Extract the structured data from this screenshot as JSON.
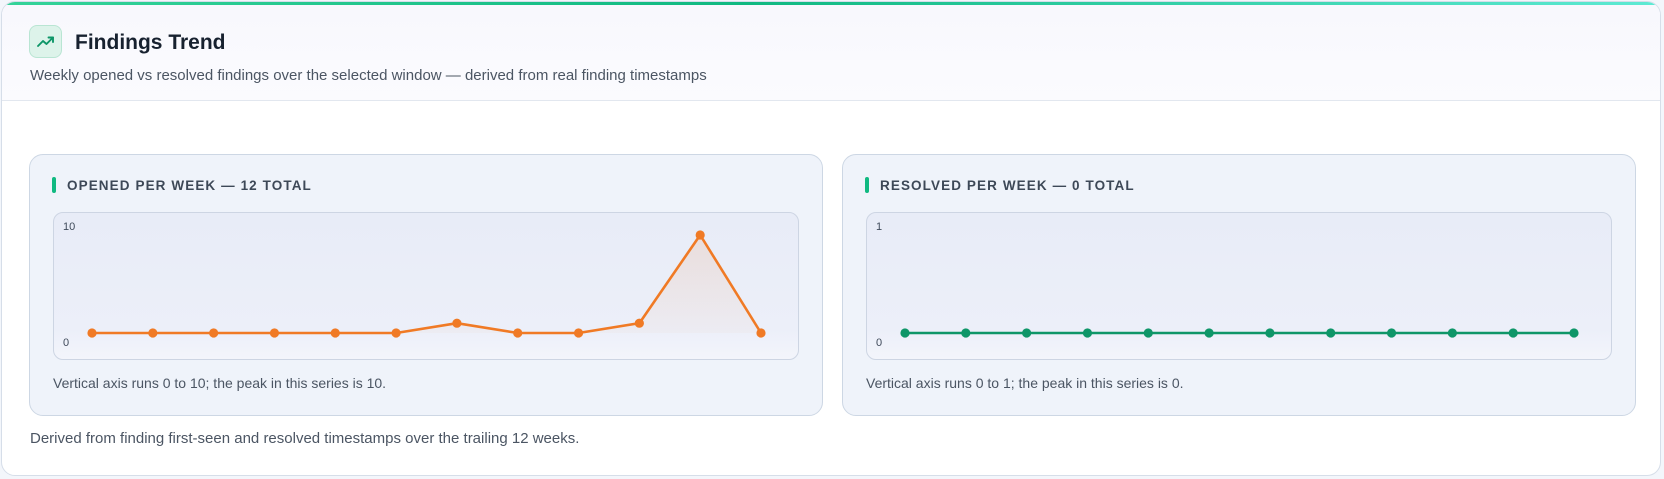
{
  "header": {
    "title": "Findings Trend",
    "subtitle": "Weekly opened vs resolved findings over the selected window — derived from real finding timestamps",
    "icon": "trending-up-icon"
  },
  "footer": {
    "note": "Derived from finding first-seen and resolved timestamps over the trailing 12 weeks."
  },
  "colors": {
    "opened": "#f07a25",
    "resolved": "#0e9668",
    "accent": "#10b981"
  },
  "panels": [
    {
      "title": "OPENED PER WEEK — 12 TOTAL",
      "note": "Vertical axis runs 0 to 10; the peak in this series is 10.",
      "y_max_label": "10",
      "y_min_label": "0"
    },
    {
      "title": "RESOLVED PER WEEK — 0 TOTAL",
      "note": "Vertical axis runs 0 to 1; the peak in this series is 0.",
      "y_max_label": "1",
      "y_min_label": "0"
    }
  ],
  "chart_data": [
    {
      "type": "line",
      "title": "OPENED PER WEEK — 12 TOTAL",
      "x": [
        1,
        2,
        3,
        4,
        5,
        6,
        7,
        8,
        9,
        10,
        11,
        12
      ],
      "series": [
        {
          "values": [
            0,
            0,
            0,
            0,
            0,
            0,
            1,
            0,
            0,
            1,
            10,
            0
          ]
        }
      ],
      "ylim": [
        0,
        10
      ],
      "ytick_labels": [
        "0",
        "10"
      ],
      "color": "#f07a25",
      "area_fill": true,
      "grid": false,
      "legend": "none"
    },
    {
      "type": "line",
      "title": "RESOLVED PER WEEK — 0 TOTAL",
      "x": [
        1,
        2,
        3,
        4,
        5,
        6,
        7,
        8,
        9,
        10,
        11,
        12
      ],
      "series": [
        {
          "values": [
            0,
            0,
            0,
            0,
            0,
            0,
            0,
            0,
            0,
            0,
            0,
            0
          ]
        }
      ],
      "ylim": [
        0,
        1
      ],
      "ytick_labels": [
        "0",
        "1"
      ],
      "color": "#0e9668",
      "area_fill": false,
      "grid": false,
      "legend": "none"
    }
  ]
}
